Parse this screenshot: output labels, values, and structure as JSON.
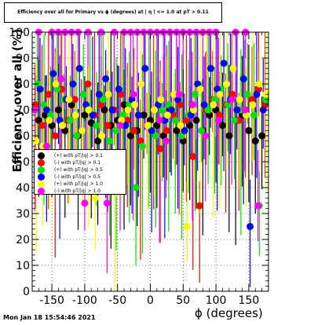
{
  "title": "Efficiency over all for Primary vs ϕ (degrees) at | η | <= 1.0 at pT > 0.11",
  "footer": "Mon Jan 18 15:54:46 2021",
  "chart_data": {
    "type": "scatter",
    "xlabel": "ϕ (degrees)",
    "ylabel": "Efficiency over all (%)",
    "xlim": [
      -180,
      180
    ],
    "ylim": [
      0,
      100
    ],
    "x_ticks": [
      "-150",
      "-100",
      "-50",
      "0",
      "50",
      "100",
      "150"
    ],
    "y_ticks": [
      "0",
      "10",
      "20",
      "30",
      "40",
      "50",
      "60",
      "70",
      "80",
      "90",
      "100"
    ],
    "grid": true,
    "legend_position": "left-middle",
    "series": [
      {
        "name": "(+) with pT/|q| > 0.1",
        "color": "#000000",
        "points": [
          [
            -170,
            66
          ],
          [
            -160,
            68
          ],
          [
            -150,
            64
          ],
          [
            -140,
            70
          ],
          [
            -130,
            62
          ],
          [
            -120,
            72
          ],
          [
            -110,
            60
          ],
          [
            -100,
            68
          ],
          [
            -90,
            65
          ],
          [
            -80,
            58
          ],
          [
            -70,
            70
          ],
          [
            -60,
            64
          ],
          [
            -50,
            66
          ],
          [
            -40,
            72
          ],
          [
            -30,
            60
          ],
          [
            -20,
            62
          ],
          [
            -10,
            68
          ],
          [
            0,
            66
          ],
          [
            10,
            64
          ],
          [
            20,
            60
          ],
          [
            30,
            70
          ],
          [
            40,
            62
          ],
          [
            50,
            58
          ],
          [
            60,
            64
          ],
          [
            70,
            66
          ],
          [
            80,
            62
          ],
          [
            90,
            68
          ],
          [
            100,
            70
          ],
          [
            110,
            64
          ],
          [
            120,
            60
          ],
          [
            130,
            66
          ],
          [
            140,
            68
          ],
          [
            150,
            62
          ],
          [
            160,
            58
          ],
          [
            170,
            60
          ]
        ]
      },
      {
        "name": "(-) with pT/|q| > 0.1",
        "color": "#ff0000",
        "points": [
          [
            -175,
            72
          ],
          [
            -165,
            64
          ],
          [
            -155,
            76
          ],
          [
            -145,
            60
          ],
          [
            -135,
            78
          ],
          [
            -125,
            66
          ],
          [
            -115,
            74
          ],
          [
            -105,
            62
          ],
          [
            -95,
            80
          ],
          [
            -85,
            68
          ],
          [
            -75,
            72
          ],
          [
            -65,
            64
          ],
          [
            -55,
            70
          ],
          [
            -45,
            76
          ],
          [
            -35,
            66
          ],
          [
            -25,
            62
          ],
          [
            -15,
            58
          ],
          [
            -5,
            64
          ],
          [
            5,
            70
          ],
          [
            15,
            55
          ],
          [
            25,
            62
          ],
          [
            35,
            68
          ],
          [
            45,
            72
          ],
          [
            55,
            66
          ],
          [
            65,
            52
          ],
          [
            75,
            33
          ],
          [
            85,
            70
          ],
          [
            95,
            74
          ],
          [
            105,
            68
          ],
          [
            115,
            72
          ],
          [
            125,
            76
          ],
          [
            135,
            66
          ],
          [
            145,
            70
          ],
          [
            155,
            74
          ],
          [
            165,
            78
          ],
          [
            175,
            72
          ]
        ]
      },
      {
        "name": "(+) with pT/|q| > 0.5",
        "color": "#00e000",
        "points": [
          [
            -172,
            80
          ],
          [
            -162,
            72
          ],
          [
            -152,
            68
          ],
          [
            -142,
            78
          ],
          [
            -132,
            74
          ],
          [
            -122,
            66
          ],
          [
            -112,
            60
          ],
          [
            -102,
            76
          ],
          [
            -92,
            70
          ],
          [
            -82,
            64
          ],
          [
            -72,
            74
          ],
          [
            -62,
            58
          ],
          [
            -52,
            62
          ],
          [
            -42,
            68
          ],
          [
            -32,
            72
          ],
          [
            -22,
            40
          ],
          [
            -12,
            56
          ],
          [
            -2,
            64
          ],
          [
            8,
            60
          ],
          [
            18,
            70
          ],
          [
            28,
            72
          ],
          [
            38,
            66
          ],
          [
            48,
            60
          ],
          [
            58,
            68
          ],
          [
            68,
            76
          ],
          [
            78,
            62
          ],
          [
            88,
            70
          ],
          [
            98,
            74
          ],
          [
            108,
            78
          ],
          [
            118,
            72
          ],
          [
            128,
            66
          ],
          [
            138,
            70
          ],
          [
            148,
            76
          ],
          [
            158,
            68
          ],
          [
            166,
            33
          ],
          [
            176,
            74
          ]
        ]
      },
      {
        "name": "(-) with pT/|q| > 0.5",
        "color": "#0000ff",
        "points": [
          [
            -168,
            78
          ],
          [
            -158,
            70
          ],
          [
            -148,
            84
          ],
          [
            -138,
            66
          ],
          [
            -128,
            74
          ],
          [
            -118,
            80
          ],
          [
            -108,
            86
          ],
          [
            -98,
            72
          ],
          [
            -88,
            68
          ],
          [
            -78,
            76
          ],
          [
            -68,
            82
          ],
          [
            -58,
            70
          ],
          [
            -48,
            78
          ],
          [
            -38,
            64
          ],
          [
            -28,
            74
          ],
          [
            -18,
            68
          ],
          [
            -8,
            86
          ],
          [
            2,
            62
          ],
          [
            12,
            72
          ],
          [
            22,
            66
          ],
          [
            32,
            70
          ],
          [
            42,
            74
          ],
          [
            52,
            62
          ],
          [
            62,
            68
          ],
          [
            72,
            80
          ],
          [
            82,
            72
          ],
          [
            92,
            86
          ],
          [
            102,
            78
          ],
          [
            112,
            88
          ],
          [
            122,
            74
          ],
          [
            132,
            70
          ],
          [
            142,
            82
          ],
          [
            152,
            25
          ],
          [
            162,
            76
          ],
          [
            172,
            70
          ]
        ]
      },
      {
        "name": "(+) with pT/|q| > 1.0",
        "color": "#ffff00",
        "points": [
          [
            -174,
            58
          ],
          [
            -164,
            56
          ],
          [
            -154,
            66
          ],
          [
            -144,
            80
          ],
          [
            -134,
            64
          ],
          [
            -124,
            74
          ],
          [
            -114,
            68
          ],
          [
            -104,
            62
          ],
          [
            -94,
            70
          ],
          [
            -84,
            36
          ],
          [
            -74,
            60
          ],
          [
            -64,
            76
          ],
          [
            -54,
            38
          ],
          [
            -44,
            66
          ],
          [
            -34,
            70
          ],
          [
            -24,
            72
          ],
          [
            -14,
            80
          ],
          [
            -4,
            64
          ],
          [
            6,
            70
          ],
          [
            16,
            74
          ],
          [
            26,
            68
          ],
          [
            36,
            76
          ],
          [
            46,
            64
          ],
          [
            56,
            25
          ],
          [
            66,
            70
          ],
          [
            76,
            78
          ],
          [
            86,
            100
          ],
          [
            96,
            72
          ],
          [
            106,
            76
          ],
          [
            116,
            80
          ],
          [
            126,
            86
          ],
          [
            136,
            74
          ],
          [
            146,
            68
          ],
          [
            156,
            72
          ],
          [
            166,
            80
          ],
          [
            176,
            76
          ]
        ]
      },
      {
        "name": "(-) with pT/|q| > 1.0",
        "color": "#ff00ff",
        "points": [
          [
            -170,
            100
          ],
          [
            -150,
            100
          ],
          [
            -140,
            100
          ],
          [
            -130,
            100
          ],
          [
            -120,
            100
          ],
          [
            -110,
            100
          ],
          [
            -95,
            100
          ],
          [
            -75,
            100
          ],
          [
            -55,
            100
          ],
          [
            -40,
            100
          ],
          [
            -30,
            100
          ],
          [
            -20,
            100
          ],
          [
            -10,
            100
          ],
          [
            0,
            100
          ],
          [
            10,
            100
          ],
          [
            20,
            100
          ],
          [
            30,
            100
          ],
          [
            40,
            100
          ],
          [
            50,
            100
          ],
          [
            60,
            100
          ],
          [
            70,
            100
          ],
          [
            80,
            100
          ],
          [
            90,
            100
          ],
          [
            100,
            100
          ],
          [
            130,
            100
          ],
          [
            145,
            100
          ],
          [
            -176,
            70
          ],
          [
            -158,
            56
          ],
          [
            -136,
            82
          ],
          [
            -100,
            34
          ],
          [
            -66,
            34
          ],
          [
            -46,
            64
          ],
          [
            -26,
            76
          ],
          [
            14,
            66
          ],
          [
            24,
            58
          ],
          [
            44,
            76
          ],
          [
            64,
            72
          ],
          [
            84,
            60
          ],
          [
            104,
            66
          ],
          [
            124,
            74
          ],
          [
            144,
            70
          ],
          [
            164,
            33
          ]
        ]
      }
    ]
  }
}
